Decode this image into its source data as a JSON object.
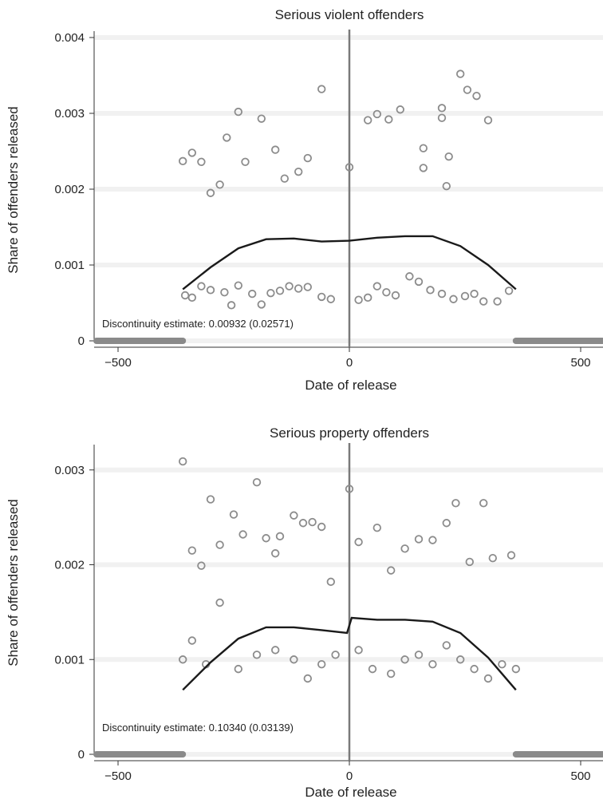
{
  "chart_data": [
    {
      "type": "scatter",
      "title": "Serious violent offenders",
      "xlabel": "Date of release",
      "ylabel": "Share of offenders released",
      "xlim": [
        -600,
        600
      ],
      "ylim": [
        0,
        0.004
      ],
      "xticks": [
        -500,
        0,
        500
      ],
      "xtick_labels": [
        "−500",
        "0",
        "500"
      ],
      "yticks": [
        0,
        0.001,
        0.002,
        0.003,
        0.004
      ],
      "ytick_labels": [
        "0",
        "0.001",
        "0.002",
        "0.003",
        "0.004"
      ],
      "cutoff_x": 0,
      "annotation": "Discontinuity estimate: 0.00932 (0.02571)",
      "points": [
        [
          -360,
          0.00237
        ],
        [
          -340,
          0.00248
        ],
        [
          -320,
          0.00236
        ],
        [
          -300,
          0.00195
        ],
        [
          -280,
          0.00206
        ],
        [
          -265,
          0.00268
        ],
        [
          -240,
          0.00302
        ],
        [
          -225,
          0.00236
        ],
        [
          -190,
          0.00293
        ],
        [
          -160,
          0.00252
        ],
        [
          -140,
          0.00214
        ],
        [
          -110,
          0.00223
        ],
        [
          -90,
          0.00241
        ],
        [
          -60,
          0.00332
        ],
        [
          0,
          0.00229
        ],
        [
          40,
          0.00291
        ],
        [
          60,
          0.00299
        ],
        [
          85,
          0.00292
        ],
        [
          110,
          0.00305
        ],
        [
          160,
          0.00254
        ],
        [
          160,
          0.00228
        ],
        [
          200,
          0.00307
        ],
        [
          215,
          0.00243
        ],
        [
          210,
          0.00204
        ],
        [
          200,
          0.00294
        ],
        [
          240,
          0.00352
        ],
        [
          255,
          0.00331
        ],
        [
          275,
          0.00323
        ],
        [
          300,
          0.00291
        ],
        [
          -355,
          0.0006
        ],
        [
          -340,
          0.00057
        ],
        [
          -320,
          0.00072
        ],
        [
          -300,
          0.00067
        ],
        [
          -270,
          0.00064
        ],
        [
          -255,
          0.00047
        ],
        [
          -240,
          0.00073
        ],
        [
          -210,
          0.00062
        ],
        [
          -190,
          0.00048
        ],
        [
          -170,
          0.00063
        ],
        [
          -150,
          0.00066
        ],
        [
          -130,
          0.00072
        ],
        [
          -110,
          0.00069
        ],
        [
          -90,
          0.00071
        ],
        [
          -60,
          0.00058
        ],
        [
          -40,
          0.00055
        ],
        [
          20,
          0.00054
        ],
        [
          40,
          0.00057
        ],
        [
          60,
          0.00072
        ],
        [
          80,
          0.00064
        ],
        [
          100,
          0.0006
        ],
        [
          130,
          0.00085
        ],
        [
          150,
          0.00078
        ],
        [
          175,
          0.00067
        ],
        [
          200,
          0.00062
        ],
        [
          225,
          0.00055
        ],
        [
          250,
          0.00059
        ],
        [
          270,
          0.00062
        ],
        [
          290,
          0.00052
        ],
        [
          320,
          0.00052
        ],
        [
          345,
          0.00066
        ]
      ],
      "fit_line": [
        [
          -360,
          0.00068
        ],
        [
          -300,
          0.00097
        ],
        [
          -240,
          0.00122
        ],
        [
          -180,
          0.00134
        ],
        [
          -120,
          0.00135
        ],
        [
          -60,
          0.00131
        ],
        [
          0,
          0.00132
        ],
        [
          60,
          0.00136
        ],
        [
          120,
          0.00138
        ],
        [
          180,
          0.00138
        ],
        [
          240,
          0.00125
        ],
        [
          300,
          0.001
        ],
        [
          360,
          0.00068
        ]
      ],
      "zero_bands": [
        [
          -600,
          -360
        ],
        [
          360,
          600
        ]
      ]
    },
    {
      "type": "scatter",
      "title": "Serious property offenders",
      "xlabel": "Date of release",
      "ylabel": "Share of offenders released",
      "xlim": [
        -600,
        600
      ],
      "ylim": [
        0,
        0.0032
      ],
      "xticks": [
        -500,
        0,
        500
      ],
      "xtick_labels": [
        "−500",
        "0",
        "500"
      ],
      "yticks": [
        0,
        0.001,
        0.002,
        0.003
      ],
      "ytick_labels": [
        "0",
        "0.001",
        "0.002",
        "0.003"
      ],
      "cutoff_x": 0,
      "annotation": "Discontinuity estimate: 0.10340 (0.03139)",
      "points": [
        [
          -360,
          0.00309
        ],
        [
          -340,
          0.00215
        ],
        [
          -320,
          0.00199
        ],
        [
          -300,
          0.00269
        ],
        [
          -280,
          0.00221
        ],
        [
          -250,
          0.00253
        ],
        [
          -230,
          0.00232
        ],
        [
          -200,
          0.00287
        ],
        [
          -180,
          0.00228
        ],
        [
          -160,
          0.00212
        ],
        [
          -150,
          0.0023
        ],
        [
          -120,
          0.00252
        ],
        [
          -100,
          0.00244
        ],
        [
          -80,
          0.00245
        ],
        [
          -60,
          0.0024
        ],
        [
          -40,
          0.00182
        ],
        [
          0,
          0.0028
        ],
        [
          20,
          0.00224
        ],
        [
          60,
          0.00239
        ],
        [
          90,
          0.00194
        ],
        [
          120,
          0.00217
        ],
        [
          150,
          0.00227
        ],
        [
          180,
          0.00226
        ],
        [
          210,
          0.00244
        ],
        [
          230,
          0.00265
        ],
        [
          260,
          0.00203
        ],
        [
          290,
          0.00265
        ],
        [
          310,
          0.00207
        ],
        [
          350,
          0.0021
        ],
        [
          -360,
          0.001
        ],
        [
          -340,
          0.0012
        ],
        [
          -310,
          0.00095
        ],
        [
          -280,
          0.0016
        ],
        [
          -240,
          0.0009
        ],
        [
          -200,
          0.00105
        ],
        [
          -160,
          0.0011
        ],
        [
          -120,
          0.001
        ],
        [
          -90,
          0.0008
        ],
        [
          -60,
          0.00095
        ],
        [
          -30,
          0.00105
        ],
        [
          20,
          0.0011
        ],
        [
          50,
          0.0009
        ],
        [
          90,
          0.00085
        ],
        [
          120,
          0.001
        ],
        [
          150,
          0.00105
        ],
        [
          180,
          0.00095
        ],
        [
          210,
          0.00115
        ],
        [
          240,
          0.001
        ],
        [
          270,
          0.0009
        ],
        [
          300,
          0.0008
        ],
        [
          330,
          0.00095
        ],
        [
          360,
          0.0009
        ]
      ],
      "fit_line": [
        [
          -360,
          0.00068
        ],
        [
          -300,
          0.00097
        ],
        [
          -240,
          0.00122
        ],
        [
          -180,
          0.00134
        ],
        [
          -120,
          0.00134
        ],
        [
          -60,
          0.00131
        ],
        [
          -5,
          0.00128
        ],
        [
          5,
          0.00144
        ],
        [
          60,
          0.00142
        ],
        [
          120,
          0.00142
        ],
        [
          180,
          0.0014
        ],
        [
          240,
          0.00128
        ],
        [
          300,
          0.00102
        ],
        [
          360,
          0.00068
        ]
      ],
      "zero_bands": [
        [
          -600,
          -360
        ],
        [
          360,
          600
        ]
      ]
    }
  ]
}
